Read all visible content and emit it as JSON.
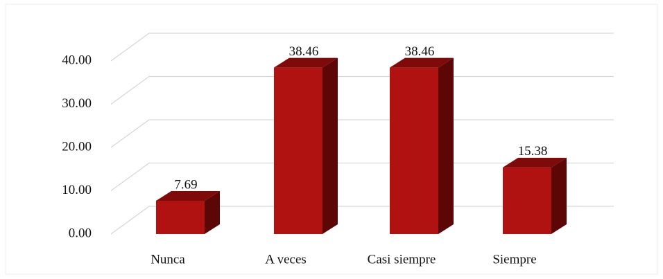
{
  "chart_data": {
    "type": "bar3d",
    "categories": [
      "Nunca",
      "A veces",
      "Casi siempre",
      "Siempre"
    ],
    "values": [
      7.69,
      38.46,
      38.46,
      15.38
    ],
    "color": "#b01212",
    "ylim": [
      0,
      40
    ],
    "yticks": [
      {
        "value": 0,
        "label": "0.00"
      },
      {
        "value": 10,
        "label": "10.00"
      },
      {
        "value": 20,
        "label": "20.00"
      },
      {
        "value": 30,
        "label": "30.00"
      },
      {
        "value": 40,
        "label": "40.00"
      }
    ],
    "grid": true
  }
}
